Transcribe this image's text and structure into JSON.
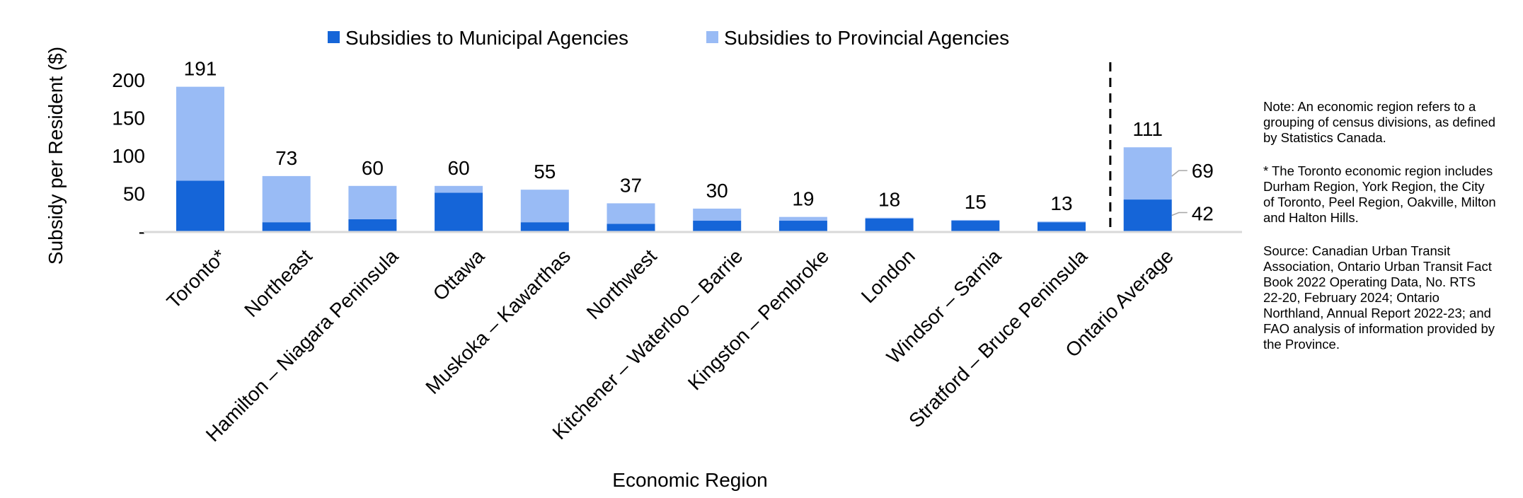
{
  "chart_data": {
    "type": "bar",
    "stacked": true,
    "title": "",
    "xlabel": "Economic Region",
    "ylabel": "Subsidy per Resident ($)",
    "ylim": [
      0,
      200
    ],
    "yticks": [
      0,
      50,
      100,
      150,
      200
    ],
    "ytick_labels": [
      "-",
      "50",
      "100",
      "150",
      "200"
    ],
    "grid": false,
    "legend_position": "top",
    "categories": [
      "Toronto*",
      "Northeast",
      "Hamilton – Niagara Peninsula",
      "Ottawa",
      "Muskoka – Kawarthas",
      "Northwest",
      "Kitchener – Waterloo – Barrie",
      "Kingston – Pembroke",
      "London",
      "Windsor –  Sarnia",
      "Stratford – Bruce Peninsula",
      "Ontario Average"
    ],
    "series": [
      {
        "name": "Subsidies to Municipal Agencies",
        "color": "#1565d8",
        "values": [
          67,
          12,
          16,
          51,
          12,
          10,
          14,
          14,
          17,
          14,
          12,
          42
        ]
      },
      {
        "name": "Subsidies to Provincial Agencies",
        "color": "#99bbf5",
        "values": [
          124,
          61,
          44,
          9,
          43,
          27,
          16,
          5,
          1,
          1,
          1,
          69
        ]
      }
    ],
    "totals": [
      "191",
      "73",
      "60",
      "60",
      "55",
      "37",
      "30",
      "19",
      "18",
      "15",
      "13",
      "111"
    ],
    "average_labels": {
      "provincial": "69",
      "municipal": "42"
    },
    "separator_before_category": "Ontario Average"
  },
  "notes": {
    "definition": "Note: An economic region refers to a grouping of census divisions, as defined by Statistics Canada.",
    "toronto": "* The Toronto economic region includes Durham Region, York Region, the City of Toronto, Peel Region, Oakville, Milton and Halton Hills.",
    "source": "Source: Canadian Urban Transit Association, Ontario Urban Transit Fact Book 2022 Operating Data, No. RTS 22-20, February 2024; Ontario Northland, Annual Report 2022-23; and FAO analysis of information provided by the Province."
  }
}
